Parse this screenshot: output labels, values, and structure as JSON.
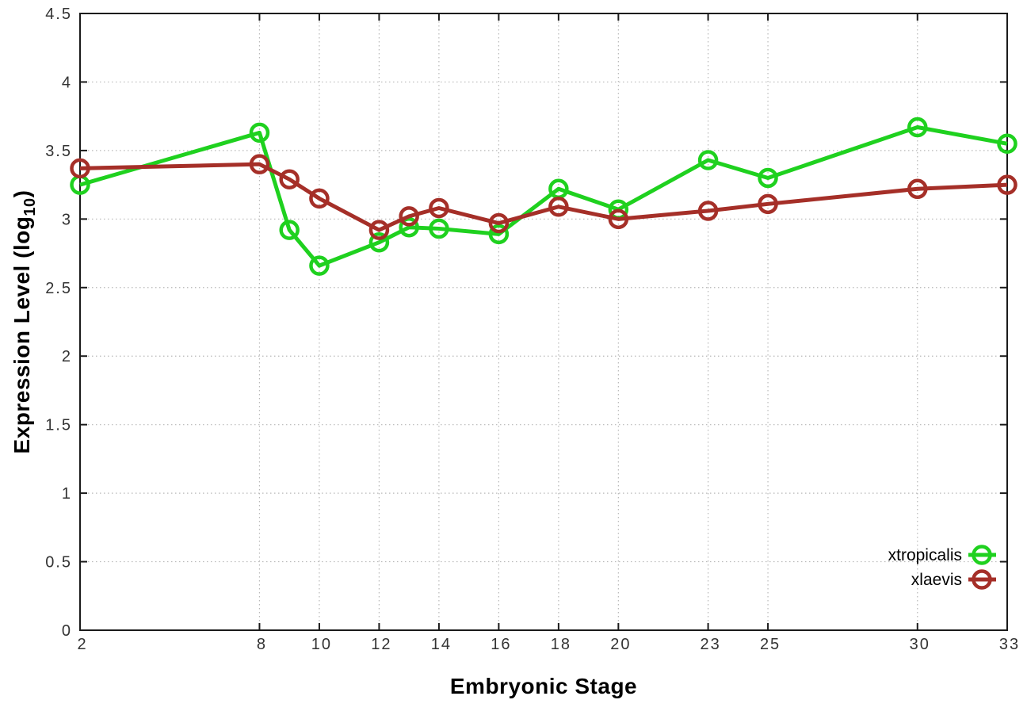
{
  "axes": {
    "x_label": "Embryonic Stage",
    "y_label_main": "Expression Level (log",
    "y_label_sub": "10",
    "y_label_close": ")"
  },
  "style": {
    "background": "#ffffff",
    "axis_color": "#1a1a1a",
    "grid_color": "#b8b8b8",
    "tick_label_color": "#333333",
    "legend_text_color": "#000000"
  },
  "chart_data": {
    "type": "line",
    "title": "",
    "xlabel": "Embryonic Stage",
    "ylabel": "Expression Level (log10)",
    "xlim": [
      2,
      33
    ],
    "ylim": [
      0,
      4.5
    ],
    "grid": true,
    "legend_position": "bottom-right",
    "marker": "open-circle",
    "x": [
      2,
      8,
      9,
      10,
      12,
      13,
      14,
      16,
      18,
      20,
      23,
      25,
      30,
      33
    ],
    "x_ticks": [
      2,
      8,
      10,
      12,
      14,
      16,
      18,
      20,
      23,
      25,
      30,
      33
    ],
    "x_tick_labels": [
      "2",
      "8",
      "10",
      "12",
      "14",
      "16",
      "18",
      "20",
      "23",
      "25",
      "30",
      "33"
    ],
    "y_ticks": [
      0,
      0.5,
      1,
      1.5,
      2,
      2.5,
      3,
      3.5,
      4,
      4.5
    ],
    "y_tick_labels": [
      "0",
      "0.5",
      "1",
      "1.5",
      "2",
      "2.5",
      "3",
      "3.5",
      "4",
      "4.5"
    ],
    "series": [
      {
        "name": "xtropicalis",
        "color": "#1fd11f",
        "values": [
          3.25,
          3.63,
          2.92,
          2.66,
          2.83,
          2.94,
          2.93,
          2.89,
          3.22,
          3.07,
          3.43,
          3.3,
          3.67,
          3.55
        ]
      },
      {
        "name": "xlaevis",
        "color": "#a52f28",
        "values": [
          3.37,
          3.4,
          3.29,
          3.15,
          2.92,
          3.02,
          3.08,
          2.97,
          3.09,
          3.0,
          3.06,
          3.11,
          3.22,
          3.25
        ]
      }
    ]
  }
}
